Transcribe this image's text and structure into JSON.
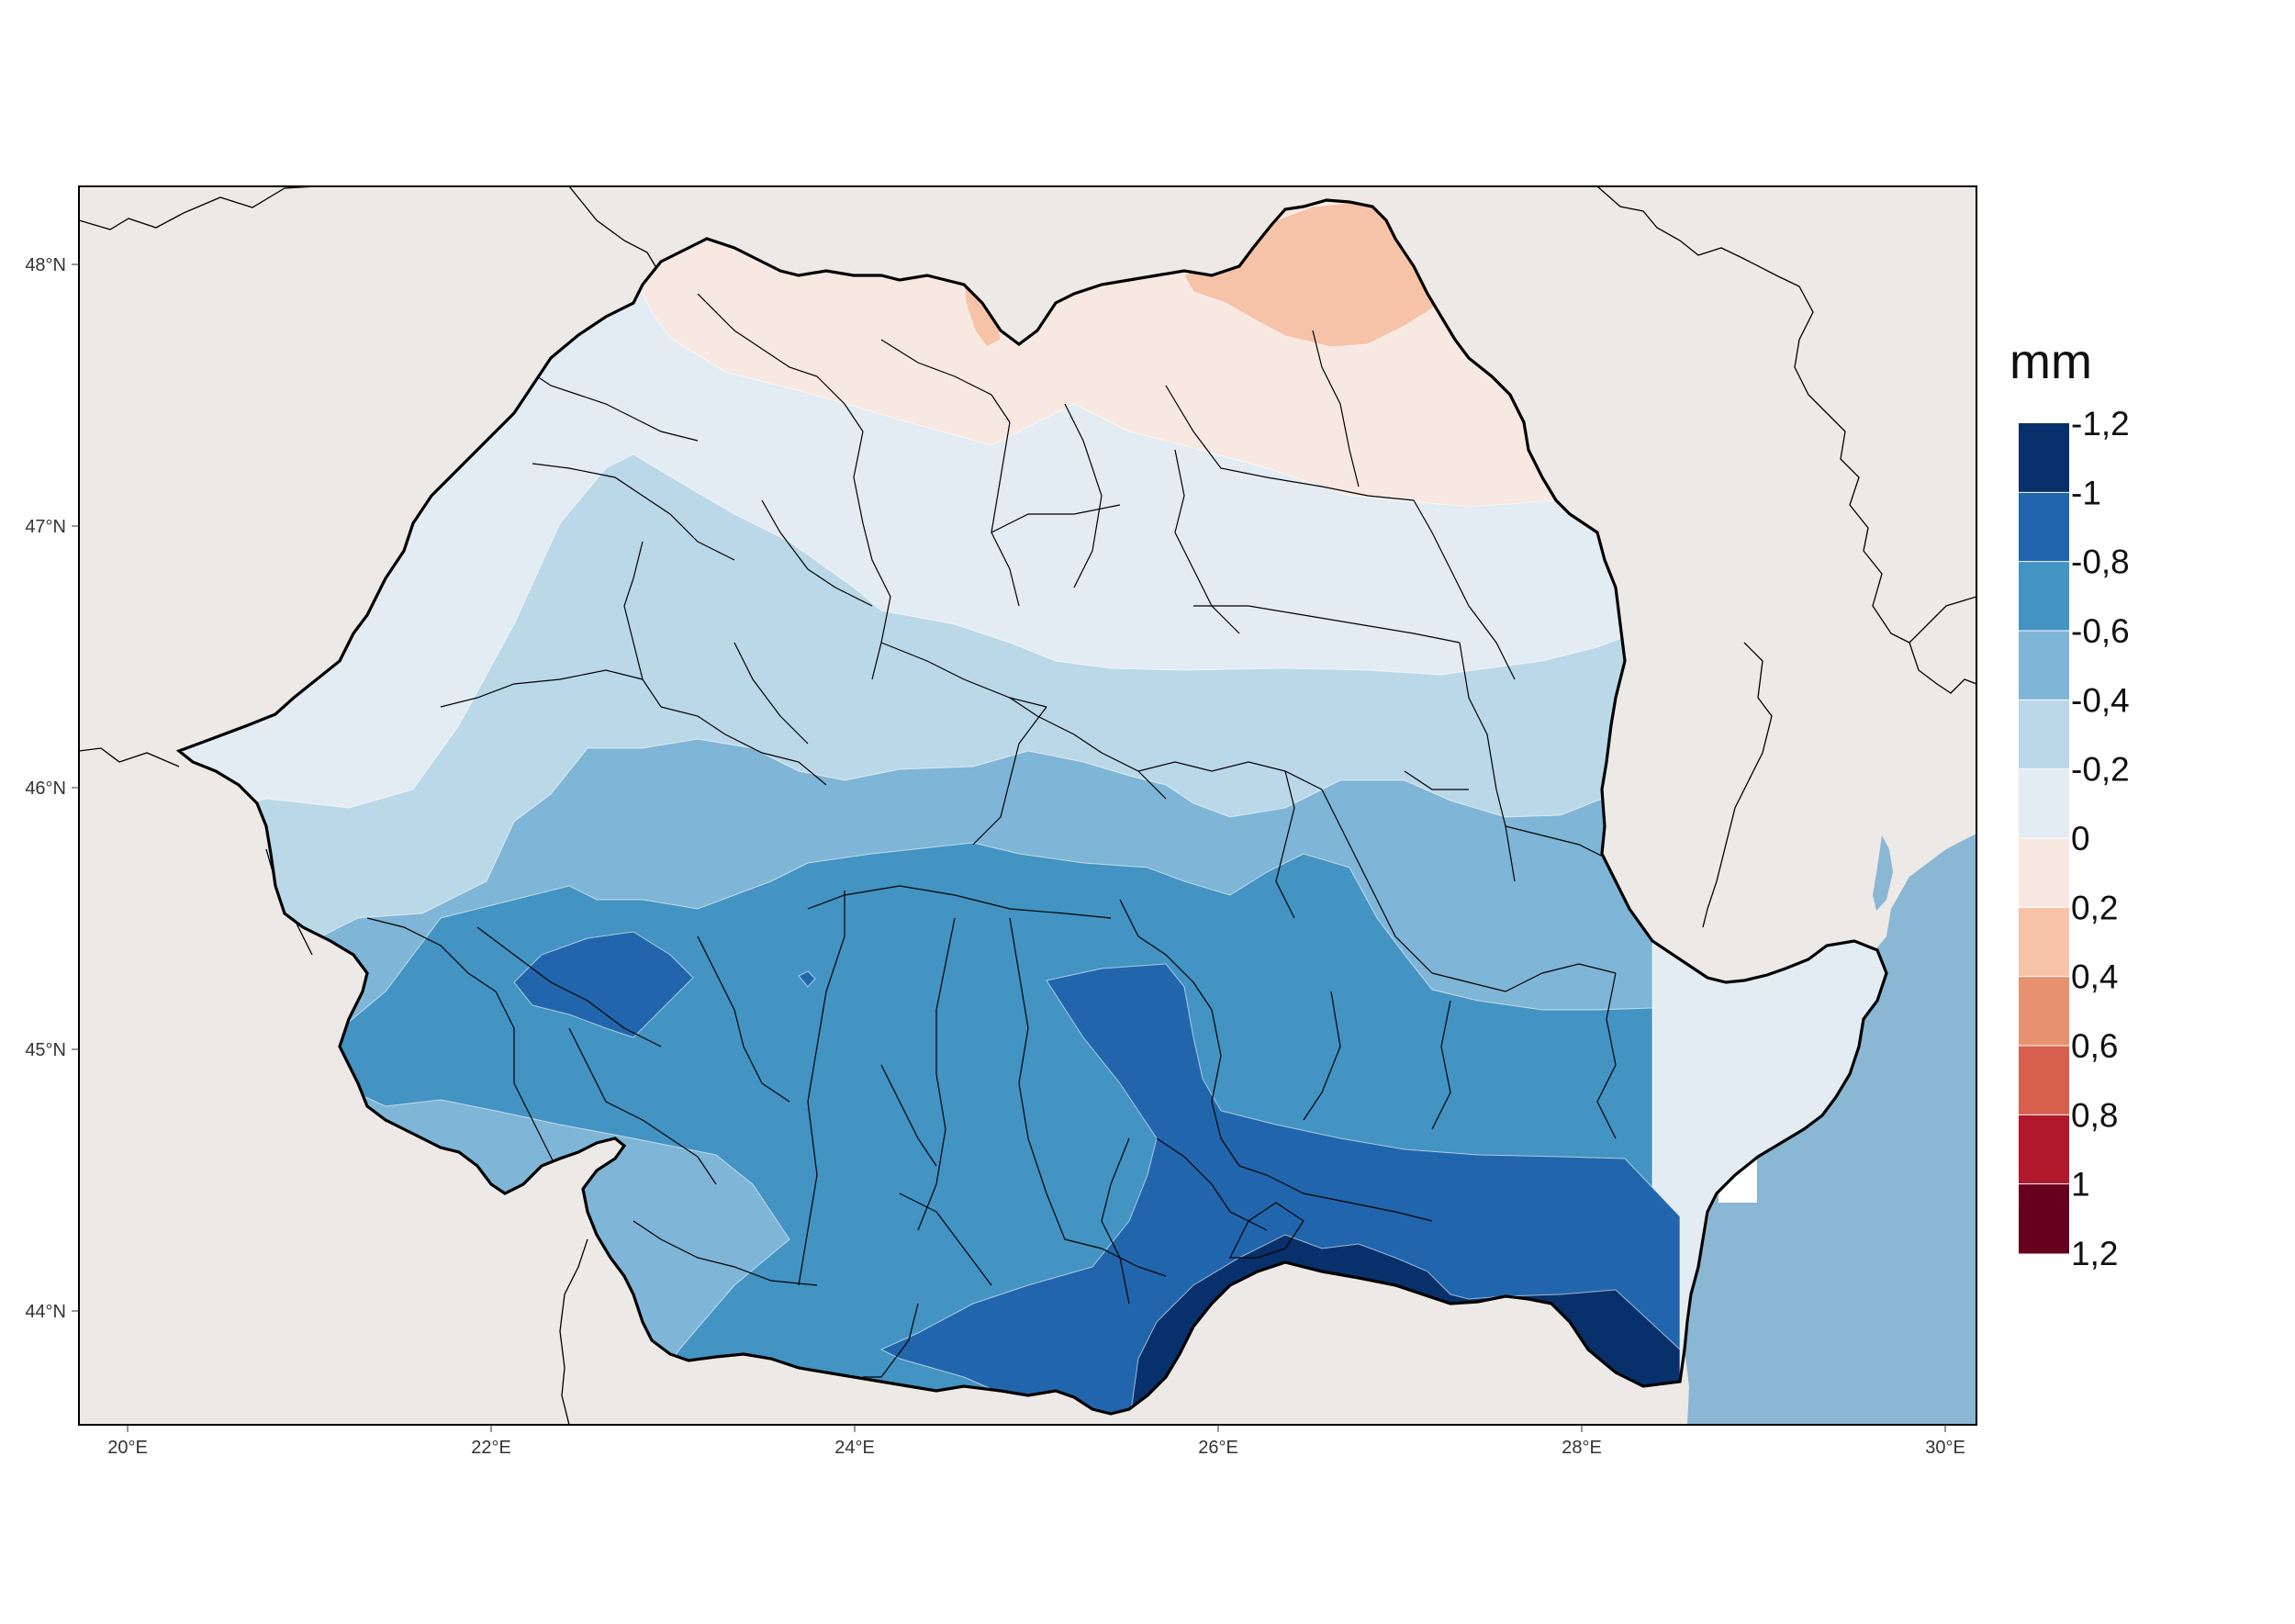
{
  "colors": {
    "page_bg": "#ffffff",
    "outside_land": "#ede9e6",
    "sea": "#8ab7d3",
    "blacksea_mask": "#ffffff",
    "frame": "#000000",
    "border_country": "#000000",
    "border_county": "#000000"
  },
  "map": {
    "lon_ticks": [
      "20°E",
      "22°E",
      "24°E",
      "26°E",
      "28°E",
      "30°E"
    ],
    "lat_ticks": [
      "48°N",
      "47°N",
      "46°N",
      "45°N",
      "44°N"
    ]
  },
  "legend": {
    "title": "mm",
    "bins": [
      {
        "label": "-1,2",
        "color": "#08306b"
      },
      {
        "label": "-1",
        "color": "#2166ac"
      },
      {
        "label": "-0,8",
        "color": "#4393c3"
      },
      {
        "label": "-0,6",
        "color": "#7fb5d6"
      },
      {
        "label": "-0,4",
        "color": "#bad8e8"
      },
      {
        "label": "-0,2",
        "color": "#e3ecf2"
      },
      {
        "label": "0",
        "color": "#f7e9e1"
      },
      {
        "label": "0,2",
        "color": "#f6c3a9"
      },
      {
        "label": "0,4",
        "color": "#e8916f"
      },
      {
        "label": "0,6",
        "color": "#d6604d"
      },
      {
        "label": "0,8",
        "color": "#b2182b"
      },
      {
        "label": "1",
        "color": "#67001f"
      }
    ],
    "end_label": "1,2"
  },
  "zones": [
    {
      "name": "zone-0-to-0.2",
      "value": "0 to 0.2",
      "color": "#f7e9e1"
    },
    {
      "name": "zone-0.2-to-0.4",
      "value": "0.2 to 0.4",
      "color": "#f6c3a9"
    },
    {
      "name": "zone-minus0.2-to-0",
      "value": "-0.2 to 0",
      "color": "#e3ecf2"
    },
    {
      "name": "zone-minus0.4-to-minus0.2",
      "value": "-0.4 to -0.2",
      "color": "#bad8e8"
    },
    {
      "name": "zone-minus0.6-to-minus0.4",
      "value": "-0.6 to -0.4",
      "color": "#7fb5d6"
    },
    {
      "name": "zone-minus0.8-to-minus0.6",
      "value": "-0.8 to -0.6",
      "color": "#4393c3"
    },
    {
      "name": "zone-minus1-to-minus0.8",
      "value": "-1 to -0.8",
      "color": "#2166ac"
    },
    {
      "name": "zone-minus1.2-to-minus1",
      "value": "-1.2 to -1",
      "color": "#08306b"
    }
  ]
}
